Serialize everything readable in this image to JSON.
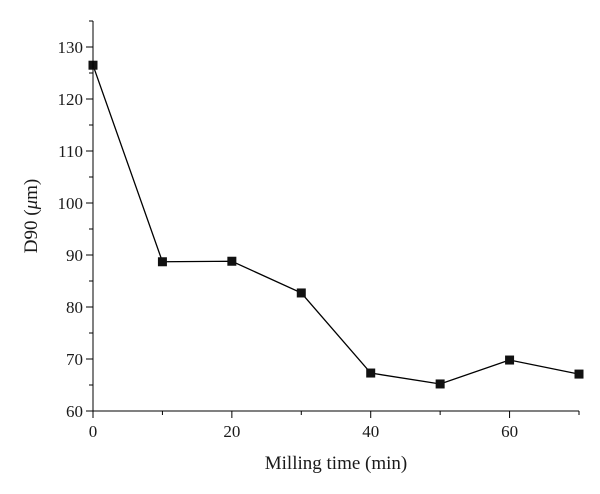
{
  "chart_data": {
    "type": "line",
    "title": "",
    "xlabel": "Milling time (min)",
    "ylabel_prefix": "D90 (",
    "ylabel_unit": "μ",
    "ylabel_suffix": "m)",
    "xlim": [
      0,
      70
    ],
    "ylim": [
      60,
      135
    ],
    "x_ticks": [
      0,
      20,
      40,
      60
    ],
    "x_tick_labels": [
      "0",
      "20",
      "40",
      "60"
    ],
    "y_ticks": [
      60,
      70,
      80,
      90,
      100,
      110,
      120,
      130
    ],
    "y_tick_labels": [
      "60",
      "70",
      "80",
      "90",
      "100",
      "110",
      "120",
      "130"
    ],
    "grid": false,
    "legend": "none",
    "marker": "square",
    "colors": {
      "line": "#000000",
      "marker": "#111111",
      "axis": "#000000"
    },
    "series": [
      {
        "x": [
          0,
          10,
          20,
          30,
          40,
          50,
          60,
          70
        ],
        "y": [
          126.5,
          88.7,
          88.8,
          82.7,
          67.3,
          65.2,
          69.8,
          67.1
        ]
      }
    ]
  }
}
